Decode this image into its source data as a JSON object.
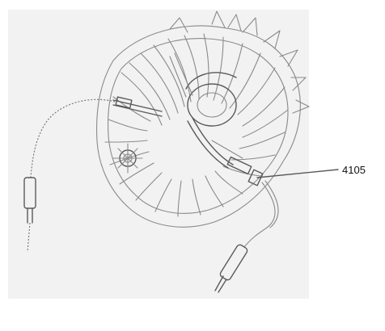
{
  "figure": {
    "callout_label": "4105",
    "colors": {
      "background": "#ffffff",
      "panel": "#f2f2f2",
      "line": "#8a8a8a",
      "line_dark": "#5a5a5a"
    }
  }
}
